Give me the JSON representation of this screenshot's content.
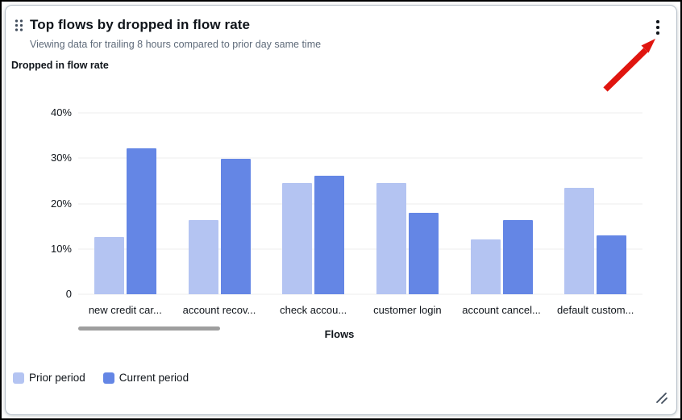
{
  "widget": {
    "title": "Top flows by dropped in flow rate",
    "subtitle": "Viewing data for trailing 8 hours compared to prior day same time",
    "menu_icon": "kebab-menu",
    "drag_icon": "drag-handle",
    "resize_icon": "resize-handle"
  },
  "chart_data": {
    "type": "bar",
    "title": "Dropped in flow rate",
    "xlabel": "Flows",
    "ylabel": "Dropped in flow rate",
    "ylim": [
      0,
      40
    ],
    "grid": true,
    "legend_position": "bottom-left",
    "x_scrollable": true,
    "categories": [
      "new credit car...",
      "account recov...",
      "check accou...",
      "customer login",
      "account cancel...",
      "default custom..."
    ],
    "yticks": [
      {
        "value": 40,
        "label": "40%"
      },
      {
        "value": 30,
        "label": "30%"
      },
      {
        "value": 20,
        "label": "20%"
      },
      {
        "value": 10,
        "label": "10%"
      },
      {
        "value": 0,
        "label": "0"
      }
    ],
    "series": [
      {
        "name": "Prior period",
        "color": "#b4c4f2",
        "values": [
          12.7,
          16.4,
          24.6,
          24.6,
          12.1,
          23.4
        ]
      },
      {
        "name": "Current period",
        "color": "#6486e5",
        "values": [
          32.2,
          29.9,
          26.1,
          17.9,
          16.3,
          12.9
        ]
      }
    ]
  },
  "annotation": {
    "type": "red-arrow",
    "points_to": "kebab-menu",
    "color": "#e0150f"
  },
  "colors": {
    "text": "#0f141a",
    "subtitle_text": "#5f6b7a",
    "gridline": "#ececec",
    "scrollbar_thumb": "#9e9e9e",
    "card_border": "#b8c1ca",
    "icon": "#414d5c"
  }
}
